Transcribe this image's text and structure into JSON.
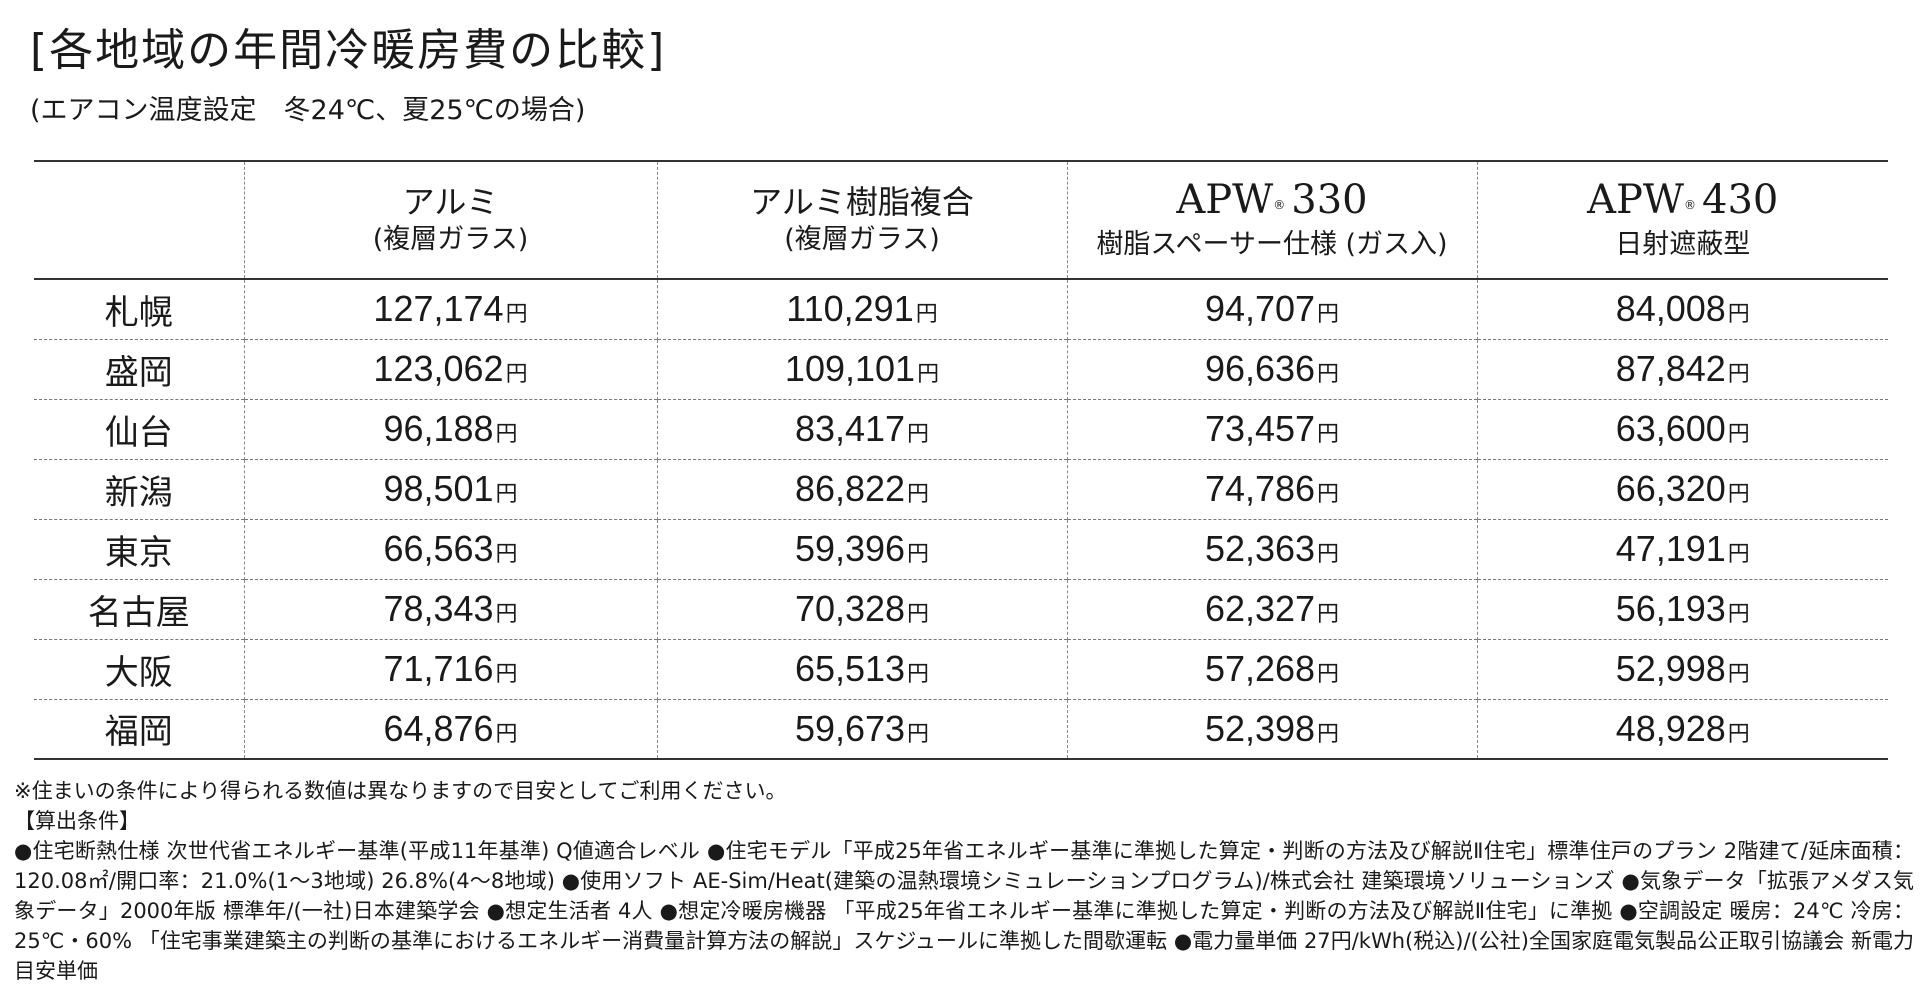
{
  "title": "[各地域の年間冷暖房費の比較]",
  "subtitle": "(エアコン温度設定　冬24℃、夏25℃の場合)",
  "unit": "円",
  "columns": [
    {
      "name": "アルミ",
      "sub": "(複層ガラス)"
    },
    {
      "name": "アルミ樹脂複合",
      "sub": "(複層ガラス)"
    },
    {
      "name": "APW",
      "model": "330",
      "mark": "®",
      "sub": "樹脂スペーサー仕様 (ガス入)"
    },
    {
      "name": "APW",
      "model": "430",
      "mark": "®",
      "sub": "日射遮蔽型"
    }
  ],
  "rows": [
    {
      "city": "札幌",
      "values": [
        "127,174",
        "110,291",
        "94,707",
        "84,008"
      ]
    },
    {
      "city": "盛岡",
      "values": [
        "123,062",
        "109,101",
        "96,636",
        "87,842"
      ]
    },
    {
      "city": "仙台",
      "values": [
        "96,188",
        "83,417",
        "73,457",
        "63,600"
      ]
    },
    {
      "city": "新潟",
      "values": [
        "98,501",
        "86,822",
        "74,786",
        "66,320"
      ]
    },
    {
      "city": "東京",
      "values": [
        "66,563",
        "59,396",
        "52,363",
        "47,191"
      ]
    },
    {
      "city": "名古屋",
      "values": [
        "78,343",
        "70,328",
        "62,327",
        "56,193"
      ]
    },
    {
      "city": "大阪",
      "values": [
        "71,716",
        "65,513",
        "57,268",
        "52,998"
      ]
    },
    {
      "city": "福岡",
      "values": [
        "64,876",
        "59,673",
        "52,398",
        "48,928"
      ]
    }
  ],
  "notes": {
    "disclaimer": "※住まいの条件により得られる数値は異なりますので目安としてご利用ください。",
    "conditions_heading": "【算出条件】",
    "conditions_text": "●住宅断熱仕様 次世代省エネルギー基準(平成11年基準) Q値適合レベル ●住宅モデル「平成25年省エネルギー基準に準拠した算定・判断の方法及び解説Ⅱ住宅」標準住戸のプラン 2階建て/延床面積：120.08㎡/開口率：21.0%(1〜3地域) 26.8%(4〜8地域) ●使用ソフト AE-Sim/Heat(建築の温熱環境シミュレーションプログラム)/株式会社 建築環境ソリューションズ ●気象データ「拡張アメダス気象データ」2000年版 標準年/(一社)日本建築学会 ●想定生活者 4人 ●想定冷暖房機器 「平成25年省エネルギー基準に準拠した算定・判断の方法及び解説Ⅱ住宅」に準拠 ●空調設定 暖房：24℃ 冷房：25℃・60% 「住宅事業建築主の判断の基準におけるエネルギー消費量計算方法の解説」スケジュールに準拠した間歇運転 ●電力量単価 27円/kWh(税込)/(公社)全国家庭電気製品公正取引協議会 新電力目安単価"
  }
}
